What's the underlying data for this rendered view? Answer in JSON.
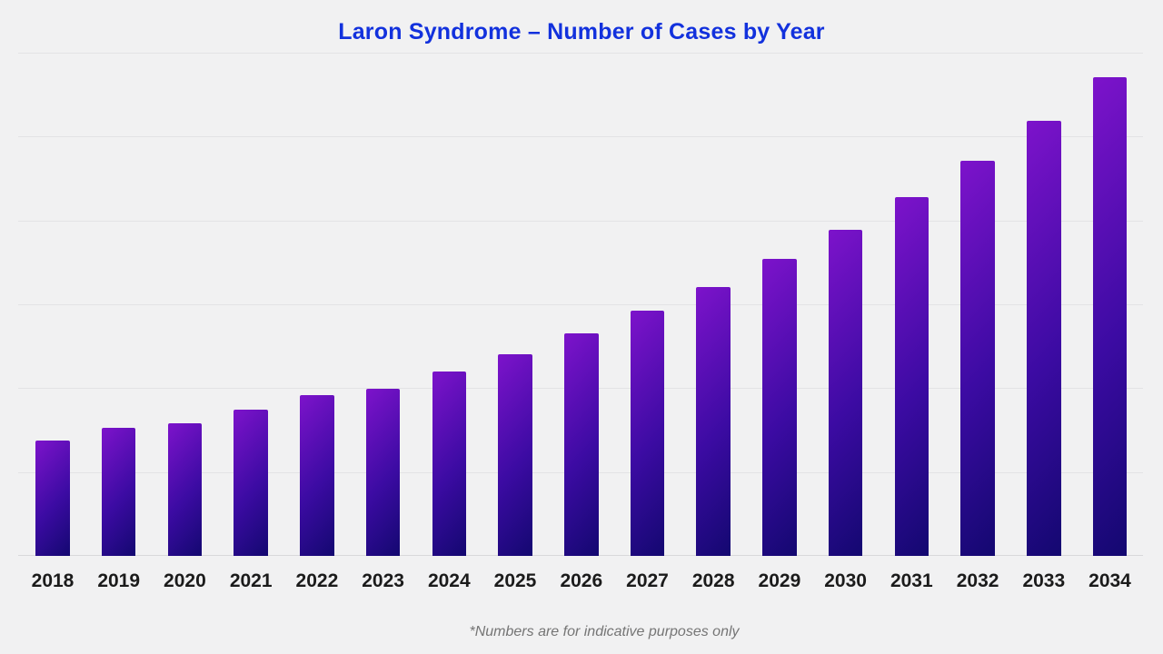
{
  "page": {
    "background_color": "#f1f1f2"
  },
  "chart_data": {
    "type": "bar",
    "title": "Laron Syndrome – Number of Cases by Year",
    "footnote": "*Numbers are for indicative purposes only",
    "categories": [
      "2018",
      "2019",
      "2020",
      "2021",
      "2022",
      "2023",
      "2024",
      "2025",
      "2026",
      "2027",
      "2028",
      "2029",
      "2030",
      "2031",
      "2032",
      "2033",
      "2034"
    ],
    "values": [
      138,
      153,
      158,
      174,
      192,
      199,
      220,
      241,
      265,
      292,
      321,
      354,
      389,
      428,
      471,
      519,
      571
    ],
    "xlabel": "",
    "ylabel": "",
    "ylim": [
      0,
      600
    ],
    "gridline_interval": 100,
    "grid": "horizontal",
    "y_tick_labels_visible": false,
    "legend_position": "none",
    "colors": {
      "title": "#1231dd",
      "bar_gradient_stops": [
        "#7d13cb",
        "#3c0ba3",
        "#130870"
      ],
      "bar_gradient_angle_deg": 133,
      "x_label": "#1b1b1b",
      "footnote": "#757575",
      "gridline": "#e3e3e5",
      "baseline": "#d9d9db"
    }
  }
}
